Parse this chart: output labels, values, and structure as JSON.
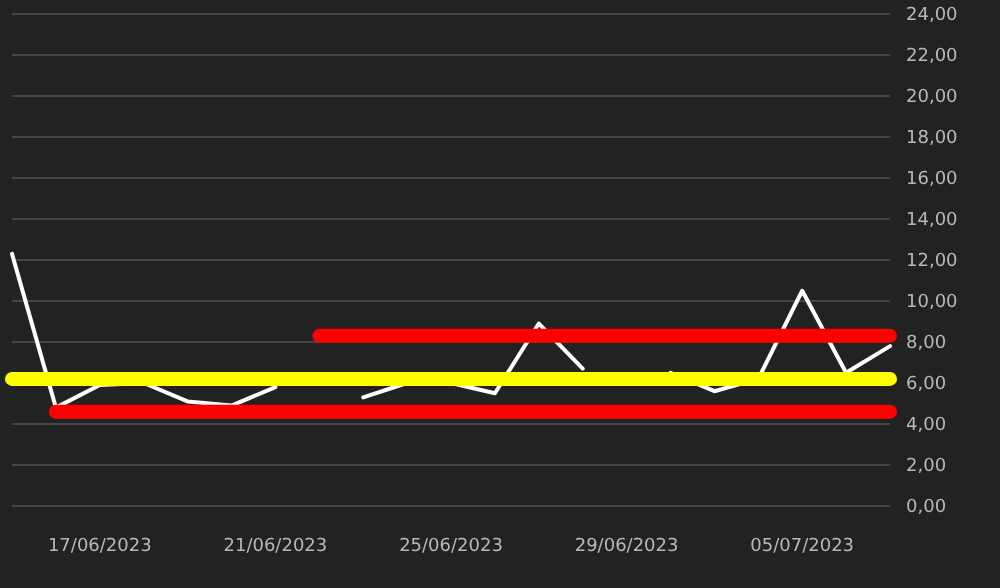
{
  "chart_data": {
    "type": "line",
    "categories": [
      null,
      null,
      "17/06/2023",
      null,
      null,
      null,
      "21/06/2023",
      null,
      null,
      null,
      "25/06/2023",
      null,
      null,
      null,
      "29/06/2023",
      null,
      null,
      null,
      "05/07/2023",
      null,
      null
    ],
    "series": [
      {
        "color": "#ffffff",
        "values": [
          12.3,
          4.8,
          5.9,
          6.0,
          5.1,
          4.9,
          5.8,
          null,
          5.3,
          6.0,
          6.0,
          5.5,
          8.9,
          6.7,
          null,
          6.5,
          5.6,
          6.2,
          10.5,
          6.5,
          7.8
        ]
      },
      {
        "color": "#ff0000",
        "values": [
          null,
          null,
          null,
          null,
          null,
          null,
          null,
          8.3,
          8.3,
          8.3,
          8.3,
          8.3,
          8.3,
          8.3,
          8.3,
          8.3,
          8.3,
          8.3,
          8.3,
          8.3,
          8.3
        ]
      },
      {
        "color": "#ffff00",
        "values": [
          6.2,
          6.2,
          6.2,
          6.2,
          6.2,
          6.2,
          6.2,
          6.2,
          6.2,
          6.2,
          6.2,
          6.2,
          6.2,
          6.2,
          6.2,
          6.2,
          6.2,
          6.2,
          6.2,
          6.2,
          6.2
        ]
      },
      {
        "color": "#ff0000",
        "values": [
          null,
          4.6,
          4.6,
          4.6,
          4.6,
          4.6,
          4.6,
          4.6,
          4.6,
          4.6,
          4.6,
          4.6,
          4.6,
          4.6,
          4.6,
          4.6,
          4.6,
          4.6,
          4.6,
          4.6,
          4.6
        ]
      }
    ],
    "ylim": [
      0,
      24
    ],
    "yticks": [
      {
        "value": 0,
        "label": "0,00"
      },
      {
        "value": 2,
        "label": "2,00"
      },
      {
        "value": 4,
        "label": "4,00"
      },
      {
        "value": 6,
        "label": "6,00"
      },
      {
        "value": 8,
        "label": "8,00"
      },
      {
        "value": 10,
        "label": "10,00"
      },
      {
        "value": 12,
        "label": "12,00"
      },
      {
        "value": 14,
        "label": "14,00"
      },
      {
        "value": 16,
        "label": "16,00"
      },
      {
        "value": 18,
        "label": "18,00"
      },
      {
        "value": 20,
        "label": "20,00"
      },
      {
        "value": 22,
        "label": "22,00"
      },
      {
        "value": 24,
        "label": "24,00"
      }
    ],
    "grid": "y",
    "marker": "none",
    "line_style": "solid"
  }
}
